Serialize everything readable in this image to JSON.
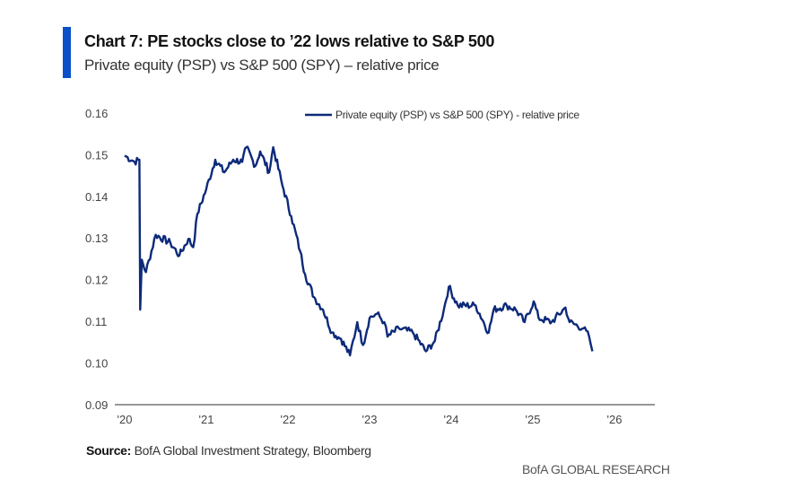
{
  "header": {
    "title": "Chart 7: PE stocks close to ’22 lows relative to S&P 500",
    "subtitle": "Private equity (PSP) vs  S&P 500 (SPY) – relative price",
    "accent_color": "#0b4fc9"
  },
  "footer": {
    "source_label": "Source:",
    "source_text": " BofA Global Investment Strategy, Bloomberg",
    "brand": "BofA GLOBAL RESEARCH"
  },
  "chart_data": {
    "type": "line",
    "title": "",
    "xlabel": "",
    "ylabel": "",
    "ylim": [
      0.09,
      0.16
    ],
    "xlim": [
      2020,
      2026.5
    ],
    "y_ticks": [
      "0.16",
      "0.15",
      "0.14",
      "0.13",
      "0.12",
      "0.11",
      "0.10",
      "0.09"
    ],
    "y_tick_values": [
      0.16,
      0.15,
      0.14,
      0.13,
      0.12,
      0.11,
      0.1,
      0.09
    ],
    "x_ticks": [
      "'20",
      "'21",
      "'22",
      "'23",
      "'24",
      "'25",
      "'26"
    ],
    "x_tick_values": [
      2020,
      2021,
      2022,
      2023,
      2024,
      2025,
      2026
    ],
    "grid": false,
    "legend_position": "top-right",
    "series": [
      {
        "name": "Private equity (PSP) vs S&P 500 (SPY) - relative price",
        "color": "#0d2a7a",
        "x": [
          2020.0,
          2020.12,
          2020.18,
          2020.19,
          2020.21,
          2020.26,
          2020.38,
          2020.56,
          2020.67,
          2020.78,
          2020.84,
          2020.89,
          2021.0,
          2021.11,
          2021.22,
          2021.33,
          2021.44,
          2021.49,
          2021.6,
          2021.66,
          2021.77,
          2021.82,
          2021.93,
          2022.04,
          2022.15,
          2022.21,
          2022.32,
          2022.43,
          2022.54,
          2022.65,
          2022.76,
          2022.85,
          2022.92,
          2023.0,
          2023.09,
          2023.18,
          2023.22,
          2023.36,
          2023.53,
          2023.69,
          2023.8,
          2023.91,
          2023.97,
          2024.08,
          2024.3,
          2024.46,
          2024.52,
          2024.68,
          2024.79,
          2024.9,
          2025.01,
          2025.07,
          2025.23,
          2025.4,
          2025.45,
          2025.62,
          2025.69,
          2025.73
        ],
        "y": [
          0.15,
          0.1485,
          0.149,
          0.113,
          0.125,
          0.122,
          0.131,
          0.129,
          0.126,
          0.13,
          0.128,
          0.136,
          0.142,
          0.149,
          0.146,
          0.149,
          0.1485,
          0.152,
          0.1475,
          0.151,
          0.146,
          0.152,
          0.143,
          0.1355,
          0.127,
          0.1215,
          0.116,
          0.113,
          0.1075,
          0.106,
          0.102,
          0.11,
          0.1045,
          0.111,
          0.112,
          0.11,
          0.1065,
          0.1085,
          0.1075,
          0.103,
          0.1055,
          0.113,
          0.1185,
          0.114,
          0.114,
          0.1075,
          0.113,
          0.114,
          0.113,
          0.11,
          0.115,
          0.111,
          0.11,
          0.1135,
          0.11,
          0.1085,
          0.1065,
          0.103
        ]
      }
    ]
  }
}
